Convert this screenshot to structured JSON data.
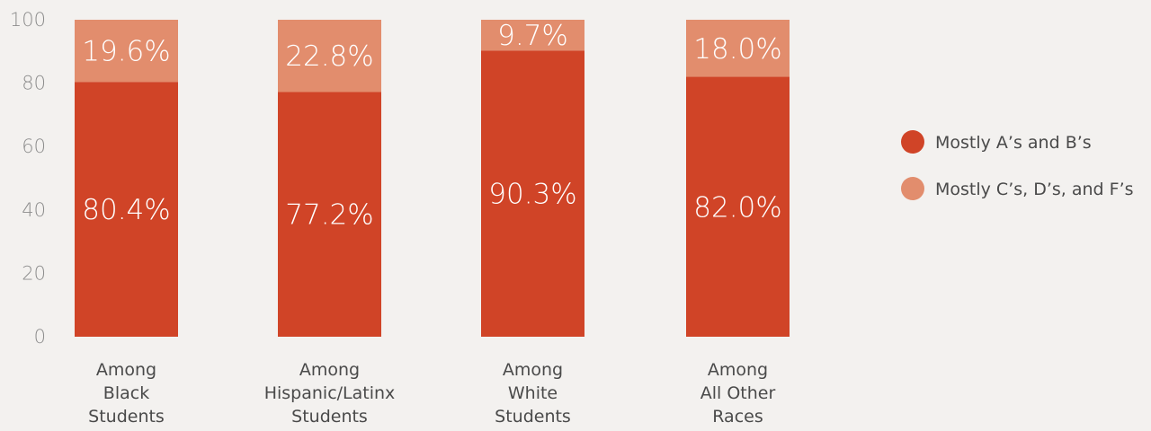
{
  "chart_data": {
    "type": "bar",
    "stacked": true,
    "title": "",
    "xlabel": "",
    "ylabel": "",
    "ylim": [
      0,
      100
    ],
    "yticks": [
      0,
      20,
      40,
      60,
      80,
      100
    ],
    "grid": false,
    "legend_position": "right",
    "categories": [
      [
        "Among",
        "Black",
        "Students"
      ],
      [
        "Among",
        "Hispanic/Latinx",
        "Students"
      ],
      [
        "Among",
        "White",
        "Students"
      ],
      [
        "Among",
        "All Other",
        "Races"
      ]
    ],
    "series": [
      {
        "name": "Mostly A’s and B’s",
        "color": "#d04427",
        "values": [
          80.4,
          77.2,
          90.3,
          82.0
        ],
        "labels": [
          "80.4%",
          "77.2%",
          "90.3%",
          "82.0%"
        ]
      },
      {
        "name": "Mostly C’s, D’s, and F’s",
        "color": "#e28d6d",
        "values": [
          19.6,
          22.8,
          9.7,
          18.0
        ],
        "labels": [
          "19.6%",
          "22.8%",
          "9.7%",
          "18.0%"
        ]
      }
    ]
  }
}
